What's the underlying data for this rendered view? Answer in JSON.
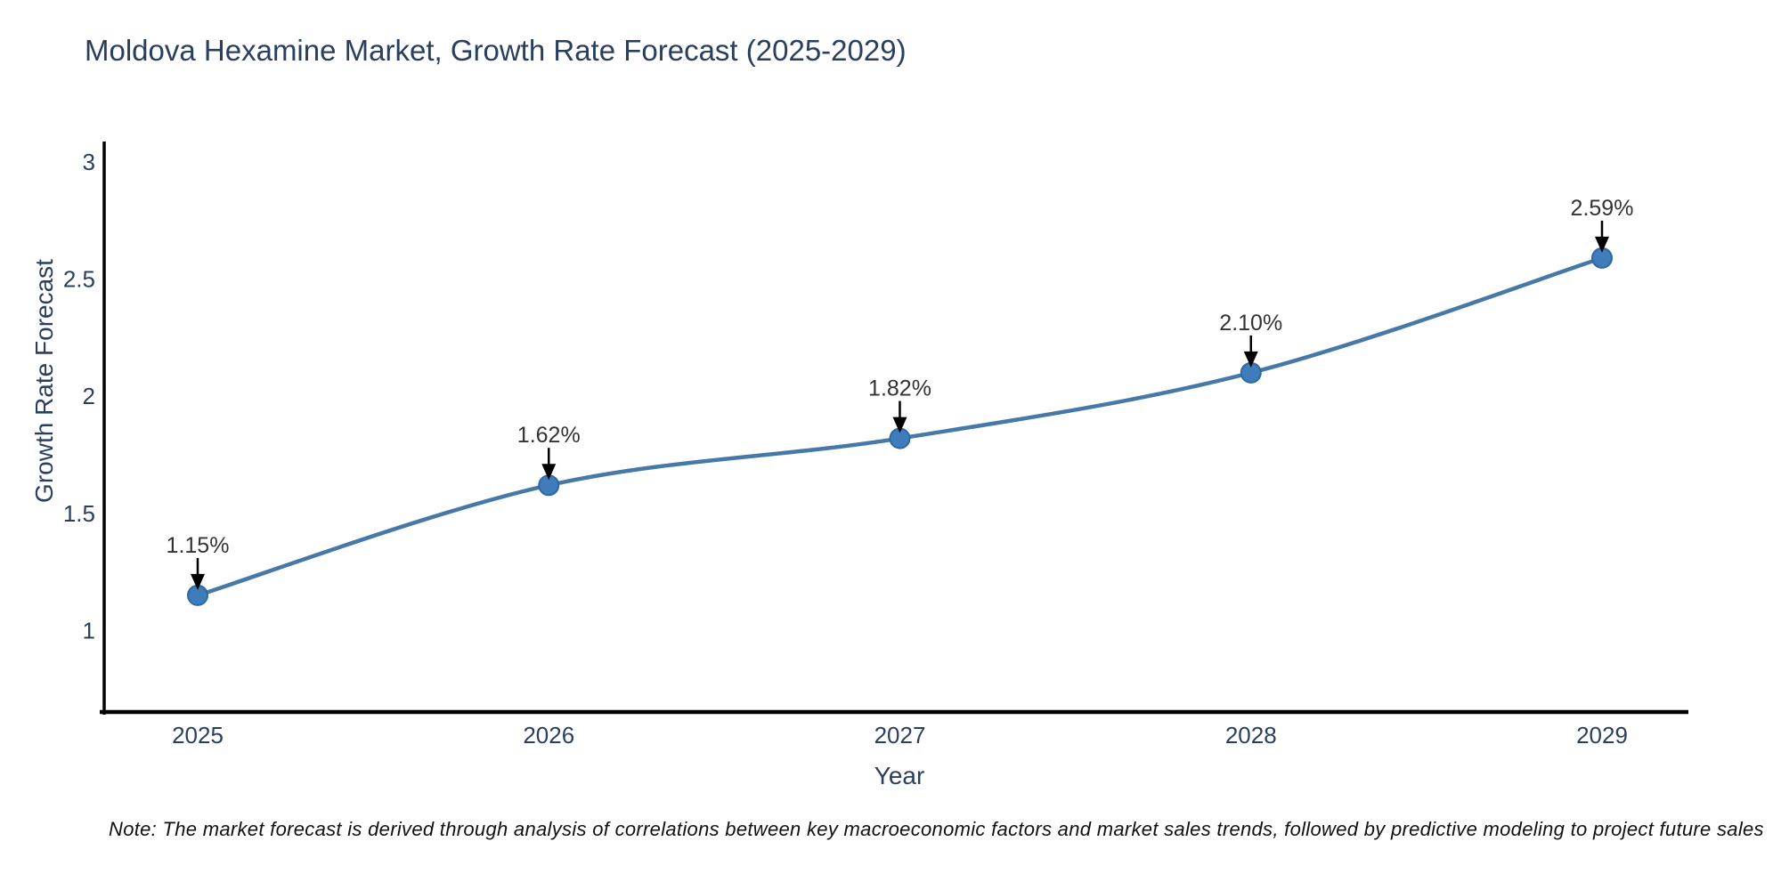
{
  "chart_data": {
    "type": "line",
    "title": "Moldova Hexamine Market, Growth Rate Forecast (2025-2029)",
    "xlabel": "Year",
    "ylabel": "Growth Rate Forecast",
    "categories": [
      "2025",
      "2026",
      "2027",
      "2028",
      "2029"
    ],
    "series": [
      {
        "name": "Growth Rate Forecast",
        "values": [
          1.15,
          1.62,
          1.82,
          2.1,
          2.59
        ],
        "point_labels": [
          "1.15%",
          "1.62%",
          "1.82%",
          "2.10%",
          "2.59%"
        ]
      }
    ],
    "yticks": [
      3,
      2.5,
      2,
      1.5,
      1
    ],
    "ytick_labels": [
      "3",
      "2.5",
      "2",
      "1.5",
      "1"
    ],
    "ylim": [
      0.65,
      3.1
    ],
    "line_shape": "spline",
    "grid": false,
    "legend": "none",
    "annotations_style": "down-arrow-to-point",
    "colors": {
      "line": "#4679a8",
      "marker": "#3e7cbc",
      "marker_edge": "#2f699e",
      "annotation_text": "#333333",
      "annotation_arrow": "#000000",
      "axis_line": "#000000",
      "text": "#2a3f5f"
    },
    "note": "Note: The market forecast is derived through analysis of correlations between key macroeconomic factors and market sales trends, followed by predictive modeling to project future sales"
  }
}
